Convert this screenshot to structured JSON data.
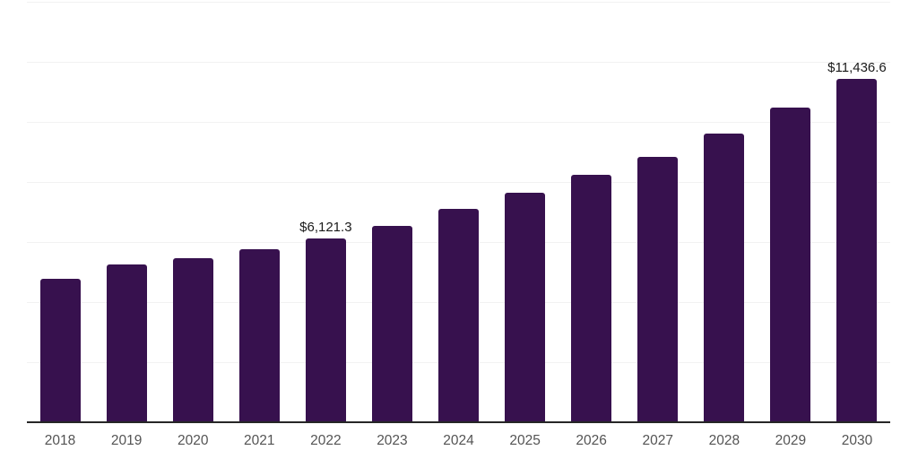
{
  "chart_data": {
    "type": "bar",
    "categories": [
      "2018",
      "2019",
      "2020",
      "2021",
      "2022",
      "2023",
      "2024",
      "2025",
      "2026",
      "2027",
      "2028",
      "2029",
      "2030"
    ],
    "values": [
      4776,
      5254,
      5460,
      5761,
      6121.3,
      6552,
      7104,
      7642,
      8239,
      8836,
      9612,
      10477,
      11436.6
    ],
    "data_labels": [
      {
        "category": "2022",
        "text": "$6,121.3"
      },
      {
        "category": "2030",
        "text": "$11,436.6"
      }
    ],
    "xlabel": "",
    "ylabel": "",
    "ylim": [
      0,
      14000
    ],
    "gridline_interval": 2000,
    "grid": true,
    "legend": false,
    "colors": {
      "bar": "#37114e",
      "axis_line": "#262626",
      "gridline": "#f2f2f2",
      "tick_label": "#545454",
      "data_label": "#1a1a1a",
      "background": "#ffffff"
    }
  }
}
